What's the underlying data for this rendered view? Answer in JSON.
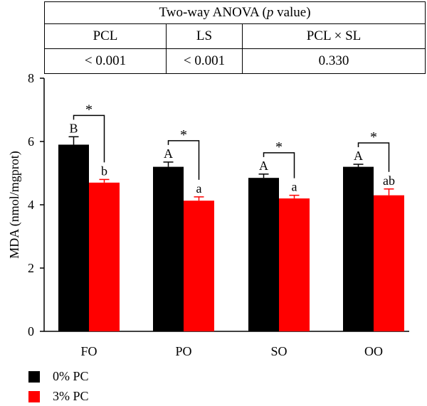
{
  "anova_table": {
    "title_prefix": "Two-way ANOVA (",
    "title_italic": "p",
    "title_suffix": " value)",
    "headers": [
      "PCL",
      "LS",
      "PCL × SL"
    ],
    "values": [
      "< 0.001",
      "< 0.001",
      "0.330"
    ]
  },
  "chart_data": {
    "type": "bar",
    "ylabel": "MDA (nmol/mgprot)",
    "ylim": [
      0,
      8
    ],
    "yticks": [
      "0",
      "2",
      "4",
      "6",
      "8"
    ],
    "categories": [
      "FO",
      "PO",
      "SO",
      "OO"
    ],
    "series": [
      {
        "name": "0% PC",
        "color": "#000000",
        "values": [
          5.9,
          5.2,
          4.85,
          5.2
        ],
        "errors": [
          0.25,
          0.15,
          0.12,
          0.08
        ],
        "letters": [
          "B",
          "A",
          "A",
          "A"
        ]
      },
      {
        "name": "3% PC",
        "color": "#ff0000",
        "values": [
          4.7,
          4.13,
          4.2,
          4.3
        ],
        "errors": [
          0.1,
          0.12,
          0.1,
          0.2
        ],
        "letters": [
          "b",
          "a",
          "a",
          "ab"
        ]
      }
    ],
    "significance": [
      "*",
      "*",
      "*",
      "*"
    ],
    "legend_position": "bottom-left"
  }
}
